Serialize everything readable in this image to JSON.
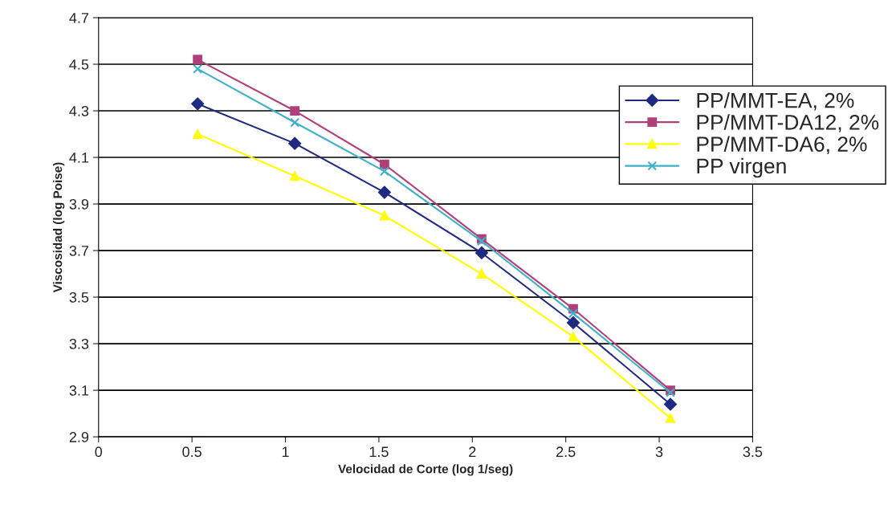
{
  "chart_data": {
    "type": "line",
    "xlabel": "Velocidad de Corte (log 1/seg)",
    "ylabel": "Viscosidad (log Poise)",
    "x": [
      0.53,
      1.05,
      1.53,
      2.05,
      2.54,
      3.06
    ],
    "series": [
      {
        "name": "PP/MMT-EA, 2%",
        "color": "#1f2a80",
        "marker": "diamond",
        "values": [
          4.33,
          4.16,
          3.95,
          3.69,
          3.39,
          3.04
        ]
      },
      {
        "name": "PP/MMT-DA12, 2%",
        "color": "#b0407a",
        "marker": "square",
        "values": [
          4.52,
          4.3,
          4.07,
          3.75,
          3.45,
          3.1
        ]
      },
      {
        "name": "PP/MMT-DA6, 2%",
        "color": "#ffff00",
        "marker": "triangle",
        "values": [
          4.2,
          4.02,
          3.85,
          3.6,
          3.33,
          2.98
        ]
      },
      {
        "name": "PP virgen",
        "color": "#3fb0c8",
        "marker": "cross",
        "values": [
          4.48,
          4.25,
          4.04,
          3.74,
          3.43,
          3.09
        ]
      }
    ],
    "xlim": [
      0,
      3.5
    ],
    "xticks": [
      0,
      0.5,
      1,
      1.5,
      2,
      2.5,
      3,
      3.5
    ],
    "ylim": [
      2.9,
      4.7
    ],
    "yticks": [
      2.9,
      3.1,
      3.3,
      3.5,
      3.7,
      3.9,
      4.1,
      4.3,
      4.5,
      4.7
    ],
    "grid": "y",
    "legend": "right"
  }
}
